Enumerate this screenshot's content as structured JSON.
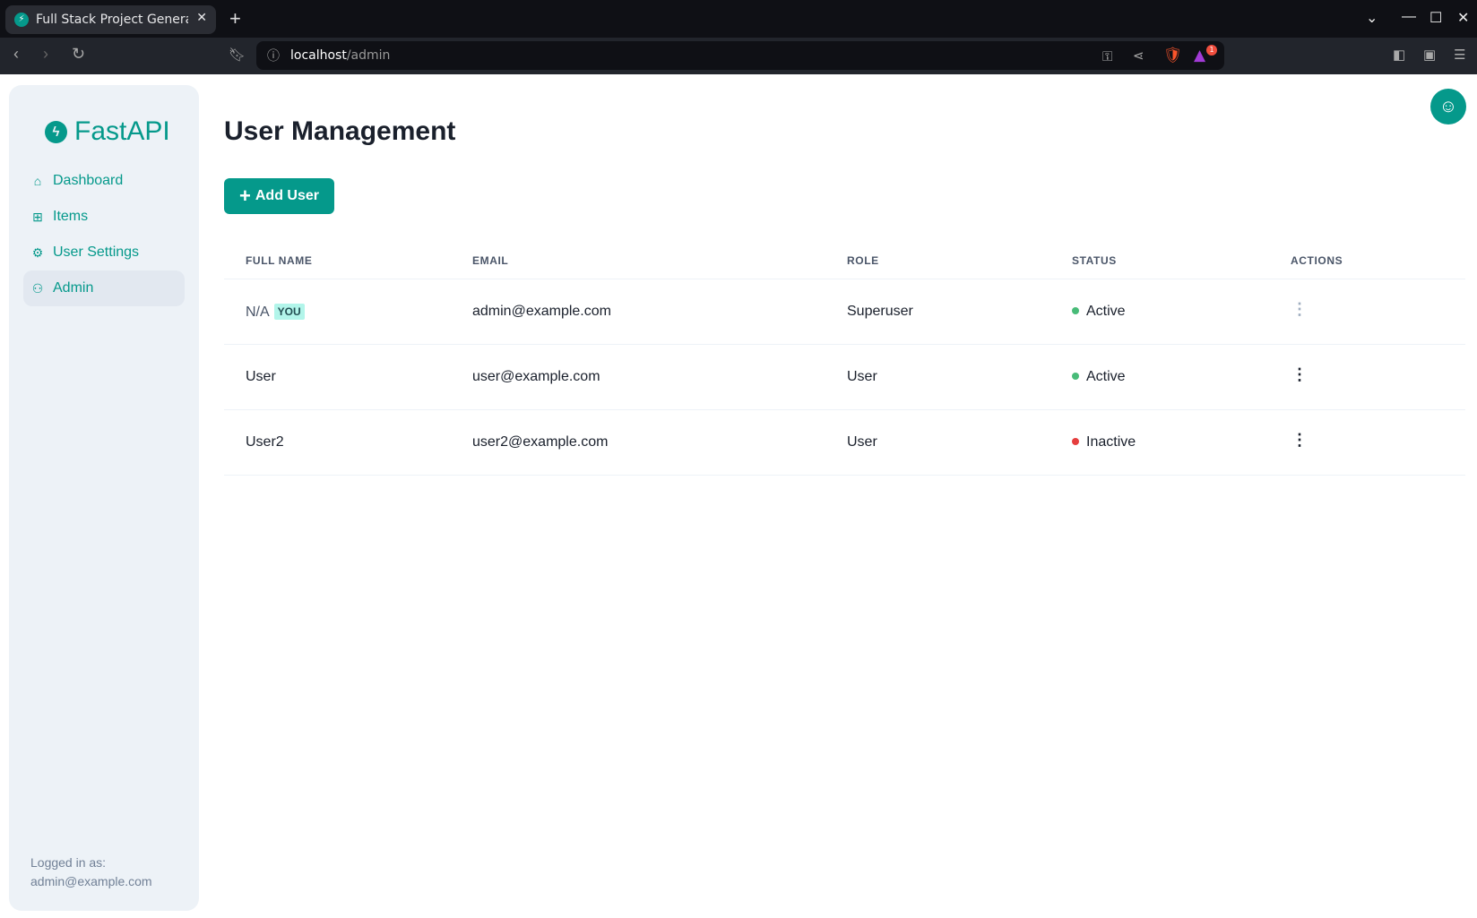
{
  "browser": {
    "tab_title": "Full Stack Project Generator",
    "url_host": "localhost",
    "url_path": "/admin",
    "notification_count": "1"
  },
  "sidebar": {
    "logo": "FastAPI",
    "items": [
      {
        "label": "Dashboard",
        "icon": "home-icon"
      },
      {
        "label": "Items",
        "icon": "briefcase-icon"
      },
      {
        "label": "User Settings",
        "icon": "gear-icon"
      },
      {
        "label": "Admin",
        "icon": "users-icon",
        "active": true
      }
    ],
    "logged_in_label": "Logged in as:",
    "logged_in_email": "admin@example.com"
  },
  "main": {
    "title": "User Management",
    "add_button": "Add User",
    "columns": [
      "FULL NAME",
      "EMAIL",
      "ROLE",
      "STATUS",
      "ACTIONS"
    ],
    "rows": [
      {
        "name": "N/A",
        "badge": "YOU",
        "email": "admin@example.com",
        "role": "Superuser",
        "status": "Active",
        "status_color": "#48bb78",
        "actions_disabled": true
      },
      {
        "name": "User",
        "email": "user@example.com",
        "role": "User",
        "status": "Active",
        "status_color": "#48bb78"
      },
      {
        "name": "User2",
        "email": "user2@example.com",
        "role": "User",
        "status": "Inactive",
        "status_color": "#e53e3e"
      }
    ]
  },
  "colors": {
    "accent": "#05998b"
  }
}
